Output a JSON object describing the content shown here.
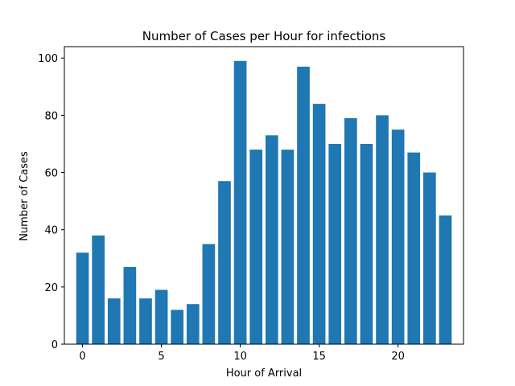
{
  "chart_data": {
    "type": "bar",
    "title": "Number of Cases per Hour for infections",
    "xlabel": "Hour of Arrival",
    "ylabel": "Number of Cases",
    "x": [
      0,
      1,
      2,
      3,
      4,
      5,
      6,
      7,
      8,
      9,
      10,
      11,
      12,
      13,
      14,
      15,
      16,
      17,
      18,
      19,
      20,
      21,
      22,
      23
    ],
    "values": [
      32,
      38,
      16,
      27,
      16,
      19,
      12,
      14,
      35,
      57,
      99,
      68,
      73,
      68,
      97,
      84,
      70,
      79,
      70,
      80,
      75,
      67,
      60,
      45
    ],
    "xlim": [
      -1.15,
      24.15
    ],
    "ylim": [
      0,
      104
    ],
    "xticks": [
      0,
      5,
      10,
      15,
      20
    ],
    "yticks": [
      0,
      20,
      40,
      60,
      80,
      100
    ],
    "bar_color": "#1f77b4",
    "grid": false,
    "legend": "none"
  }
}
